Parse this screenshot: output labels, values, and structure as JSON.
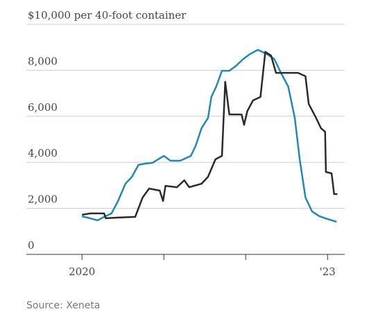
{
  "chart_data": {
    "type": "line",
    "source": "Source: Xeneta",
    "ylim": [
      0,
      10000
    ],
    "yticks": [
      0,
      {
        "value": 2000,
        "label": "2,000"
      },
      {
        "value": 4000,
        "label": "4,000"
      },
      {
        "value": 6000,
        "label": "6,000"
      },
      {
        "value": 8000,
        "label": "8,000"
      },
      {
        "value": 10000,
        "label": "$10,000 per 40-foot container"
      }
    ],
    "xlim": [
      2019.32,
      2023.21
    ],
    "xticks": [
      2020,
      {
        "value": 2021,
        "label": null
      },
      {
        "value": 2022,
        "label": null
      },
      {
        "value": 2023,
        "label": "'23"
      }
    ],
    "grid": true,
    "series": [
      {
        "color": "#1f88b4",
        "x": [
          2020.0,
          2020.1,
          2020.19,
          2020.27,
          2020.36,
          2020.44,
          2020.53,
          2020.61,
          2020.69,
          2020.78,
          2020.86,
          2021.0,
          2021.08,
          2021.2,
          2021.33,
          2021.39,
          2021.46,
          2021.54,
          2021.58,
          2021.64,
          2021.71,
          2021.8,
          2021.88,
          2021.97,
          2022.05,
          2022.15,
          2022.26,
          2022.35,
          2022.43,
          2022.52,
          2022.6,
          2022.66,
          2022.73,
          2022.81,
          2022.9,
          2023.0,
          2023.11
        ],
        "values": [
          1650,
          1570,
          1480,
          1630,
          1780,
          2320,
          3070,
          3370,
          3890,
          3950,
          3980,
          4280,
          4070,
          4070,
          4280,
          4730,
          5480,
          5930,
          6840,
          7290,
          7980,
          7980,
          8190,
          8490,
          8700,
          8890,
          8700,
          8490,
          7890,
          7290,
          5930,
          4130,
          2470,
          1870,
          1660,
          1540,
          1420
        ]
      },
      {
        "color": "#2a2a2a",
        "x": [
          2020.0,
          2020.1,
          2020.27,
          2020.29,
          2020.44,
          2020.65,
          2020.74,
          2020.82,
          2020.95,
          2020.99,
          2021.02,
          2021.16,
          2021.25,
          2021.31,
          2021.46,
          2021.54,
          2021.63,
          2021.71,
          2021.75,
          2021.8,
          2021.95,
          2021.98,
          2022.02,
          2022.09,
          2022.18,
          2022.24,
          2022.31,
          2022.37,
          2022.56,
          2022.64,
          2022.73,
          2022.77,
          2022.86,
          2022.92,
          2022.97,
          2022.98,
          2023.05,
          2023.08,
          2023.12
        ],
        "values": [
          1720,
          1780,
          1780,
          1570,
          1600,
          1630,
          2470,
          2860,
          2770,
          2320,
          2980,
          2920,
          3220,
          2920,
          3070,
          3370,
          4130,
          4280,
          7500,
          6080,
          6080,
          5630,
          6230,
          6690,
          6840,
          8800,
          8640,
          7890,
          7890,
          7890,
          7740,
          6540,
          5930,
          5480,
          5330,
          3580,
          3520,
          2620,
          2620
        ]
      }
    ]
  }
}
